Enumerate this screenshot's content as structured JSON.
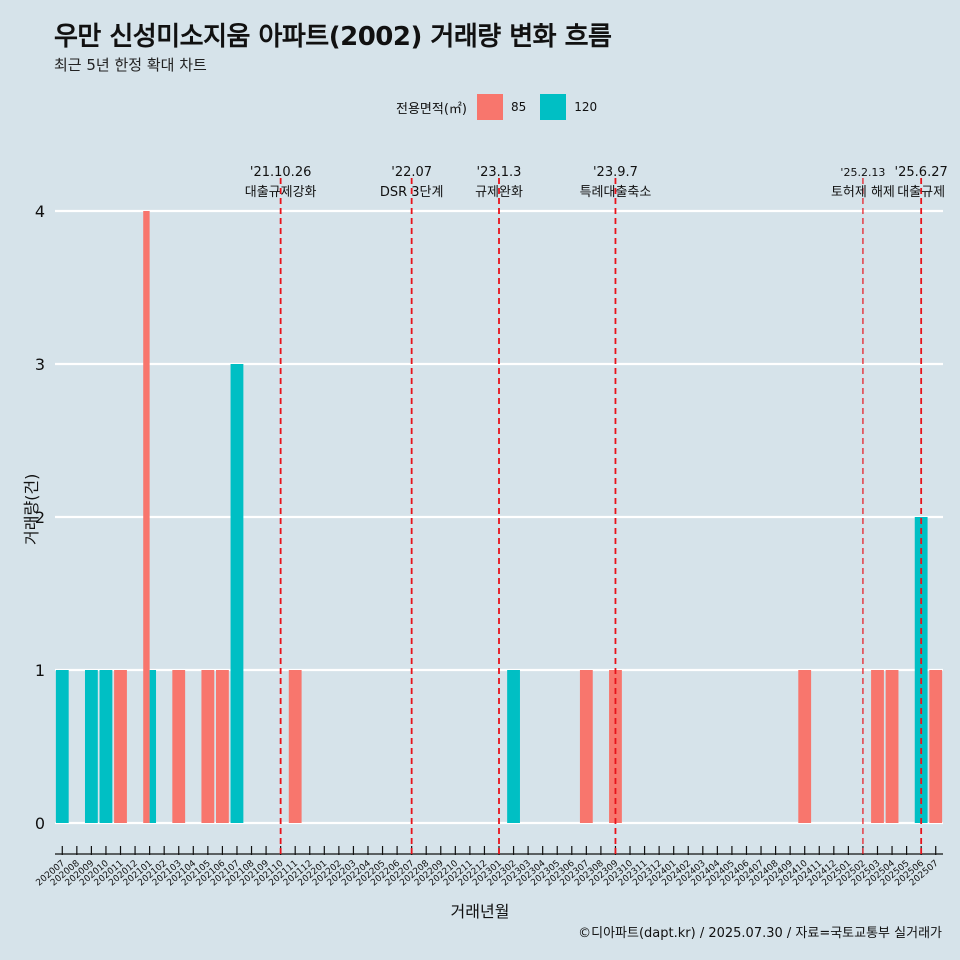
{
  "title": "우만 신성미소지움 아파트(2002) 거래량 변화 흐름",
  "subtitle": "최근 5년 한정 확대 차트",
  "legend": {
    "title": "전용면적(㎡)",
    "items": [
      {
        "label": "85",
        "color": "#f8766d"
      },
      {
        "label": "120",
        "color": "#00bfc4"
      }
    ]
  },
  "caption": "©디아파트(dapt.kr) / 2025.07.30 / 자료=국토교통부 실거래가",
  "chart_data": {
    "type": "bar",
    "xlabel": "거래년월",
    "ylabel": "거래량(건)",
    "ylim": [
      0,
      4
    ],
    "yticks": [
      0,
      1,
      2,
      3,
      4
    ],
    "grid": true,
    "legend_position": "top",
    "categories": [
      "202007",
      "202008",
      "202009",
      "202010",
      "202011",
      "202012",
      "202101",
      "202102",
      "202103",
      "202104",
      "202105",
      "202106",
      "202107",
      "202108",
      "202109",
      "202110",
      "202111",
      "202112",
      "202201",
      "202202",
      "202203",
      "202204",
      "202205",
      "202206",
      "202207",
      "202208",
      "202209",
      "202210",
      "202211",
      "202212",
      "202301",
      "202302",
      "202303",
      "202304",
      "202305",
      "202306",
      "202307",
      "202308",
      "202309",
      "202310",
      "202311",
      "202312",
      "202401",
      "202402",
      "202403",
      "202404",
      "202405",
      "202406",
      "202407",
      "202408",
      "202409",
      "202410",
      "202411",
      "202412",
      "202501",
      "202502",
      "202503",
      "202504",
      "202505",
      "202506",
      "202507"
    ],
    "series": [
      {
        "name": "85",
        "color": "#f8766d",
        "values": [
          0,
          0,
          0,
          0,
          1,
          0,
          4,
          0,
          1,
          0,
          1,
          1,
          0,
          0,
          0,
          0,
          1,
          0,
          0,
          0,
          0,
          0,
          0,
          0,
          0,
          0,
          0,
          0,
          0,
          0,
          0,
          0,
          0,
          0,
          0,
          0,
          1,
          0,
          1,
          0,
          0,
          0,
          0,
          0,
          0,
          0,
          0,
          0,
          0,
          0,
          0,
          1,
          0,
          0,
          0,
          0,
          1,
          1,
          0,
          0,
          1
        ]
      },
      {
        "name": "120",
        "color": "#00bfc4",
        "values": [
          1,
          0,
          1,
          1,
          0,
          0,
          1,
          0,
          0,
          0,
          0,
          0,
          3,
          0,
          0,
          0,
          0,
          0,
          0,
          0,
          0,
          0,
          0,
          0,
          0,
          0,
          0,
          0,
          0,
          0,
          0,
          1,
          0,
          0,
          0,
          0,
          0,
          0,
          0,
          0,
          0,
          0,
          0,
          0,
          0,
          0,
          0,
          0,
          0,
          0,
          0,
          0,
          0,
          0,
          0,
          0,
          0,
          0,
          0,
          2,
          0
        ]
      }
    ],
    "annotations": [
      {
        "date": "'21.10.26",
        "label": "대출규제강화",
        "at": "202110",
        "style": "dashed"
      },
      {
        "date": "'22.07",
        "label": "DSR 3단계",
        "at": "202207",
        "style": "dashed"
      },
      {
        "date": "'23.1.3",
        "label": "규제완화",
        "at": "202301",
        "style": "dashed"
      },
      {
        "date": "'23.9.7",
        "label": "특례대출축소",
        "at": "202309",
        "style": "dashed"
      },
      {
        "date": "'25.2.13",
        "label": "토허제 해제",
        "at": "202502",
        "style": "thin-dashed"
      },
      {
        "date": "'25.6.27",
        "label": "대출규제",
        "at": "202506",
        "style": "dashed"
      }
    ]
  }
}
